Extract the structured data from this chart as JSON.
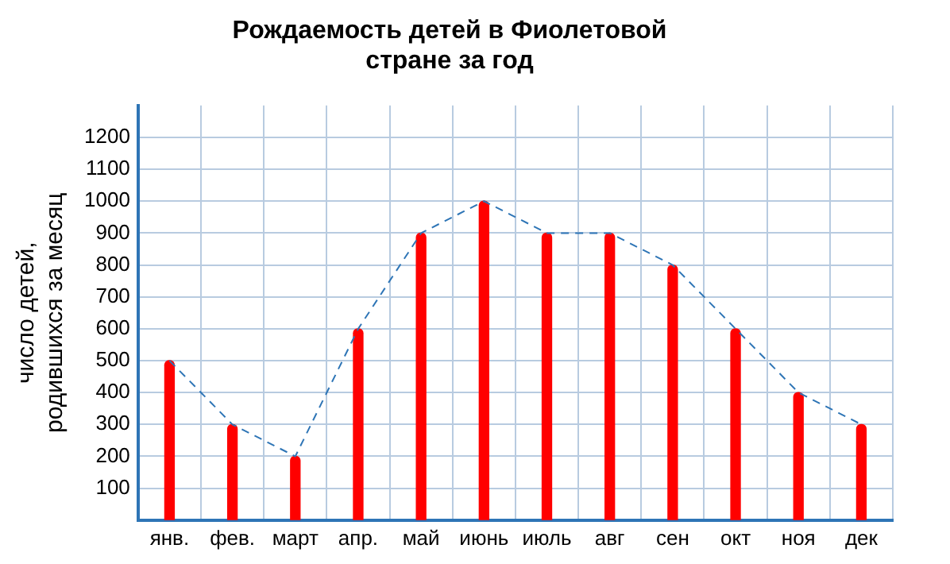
{
  "chart_data": {
    "type": "bar",
    "title": "Рождаемость детей в Фиолетовой стране за год",
    "ylabel": "число детей, родившихся за месяц",
    "categories": [
      "янв.",
      "фев.",
      "март",
      "апр.",
      "май",
      "июнь",
      "июль",
      "авг",
      "сен",
      "окт",
      "ноя",
      "дек"
    ],
    "series": [
      {
        "color": "#ff0000",
        "values": [
          500,
          300,
          200,
          600,
          900,
          1000,
          900,
          900,
          800,
          600,
          400,
          300
        ]
      },
      {
        "type": "line",
        "color": "#2e75b6",
        "line_style": "dashed",
        "values": [
          500,
          300,
          200,
          600,
          900,
          1000,
          900,
          900,
          800,
          600,
          400,
          300
        ]
      }
    ],
    "ylim": [
      0,
      1300
    ],
    "yticks": [
      100,
      200,
      300,
      400,
      500,
      600,
      700,
      800,
      900,
      1000,
      1100,
      1200
    ],
    "grid": true,
    "legend": false
  }
}
